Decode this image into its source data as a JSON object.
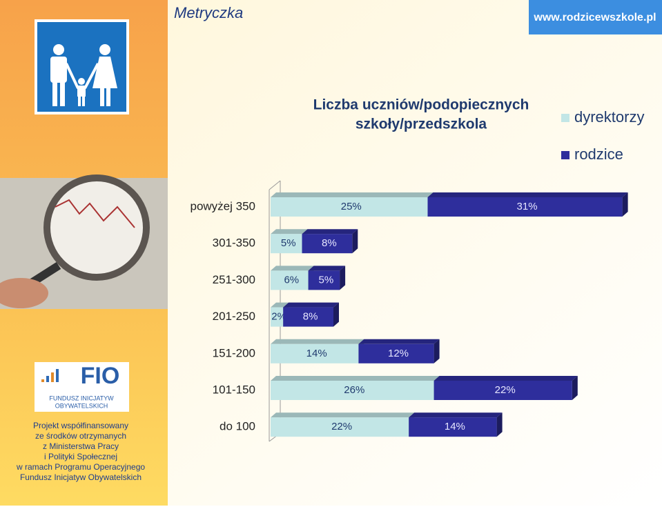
{
  "header": {
    "title": "Metryczka",
    "site": "www.rodzicewszkole.pl"
  },
  "sidebar": {
    "logo": {
      "name": "FIO",
      "subtitle": [
        "FUNDUSZ INICJATYW",
        "OBYWATELSKICH"
      ]
    },
    "note": [
      "Projekt współfinansowany",
      "ze środków otrzymanych",
      "z Ministerstwa Pracy",
      "i Polityki Społecznej",
      "w ramach Programu Operacyjnego",
      "Fundusz Inicjatyw Obywatelskich"
    ]
  },
  "chart_data": {
    "type": "stacked-bar-horizontal",
    "title": [
      "Liczba uczniów/podopiecznych",
      "szkoły/przedszkola"
    ],
    "categories": [
      "powyżej 350",
      "301-350",
      "251-300",
      "201-250",
      "151-200",
      "101-150",
      "do 100"
    ],
    "series": [
      {
        "name": "dyrektorzy",
        "color": "#c2e6e6",
        "values": [
          25,
          5,
          6,
          2,
          14,
          26,
          22
        ],
        "value_labels": [
          "25%",
          "5%",
          "6%",
          "2%",
          "14%",
          "26%",
          "22%"
        ]
      },
      {
        "name": "rodzice",
        "color": "#2e2e9c",
        "values": [
          31,
          8,
          5,
          8,
          12,
          22,
          14
        ],
        "value_labels": [
          "31%",
          "8%",
          "5%",
          "8%",
          "12%",
          "22%",
          "14%"
        ]
      }
    ]
  }
}
